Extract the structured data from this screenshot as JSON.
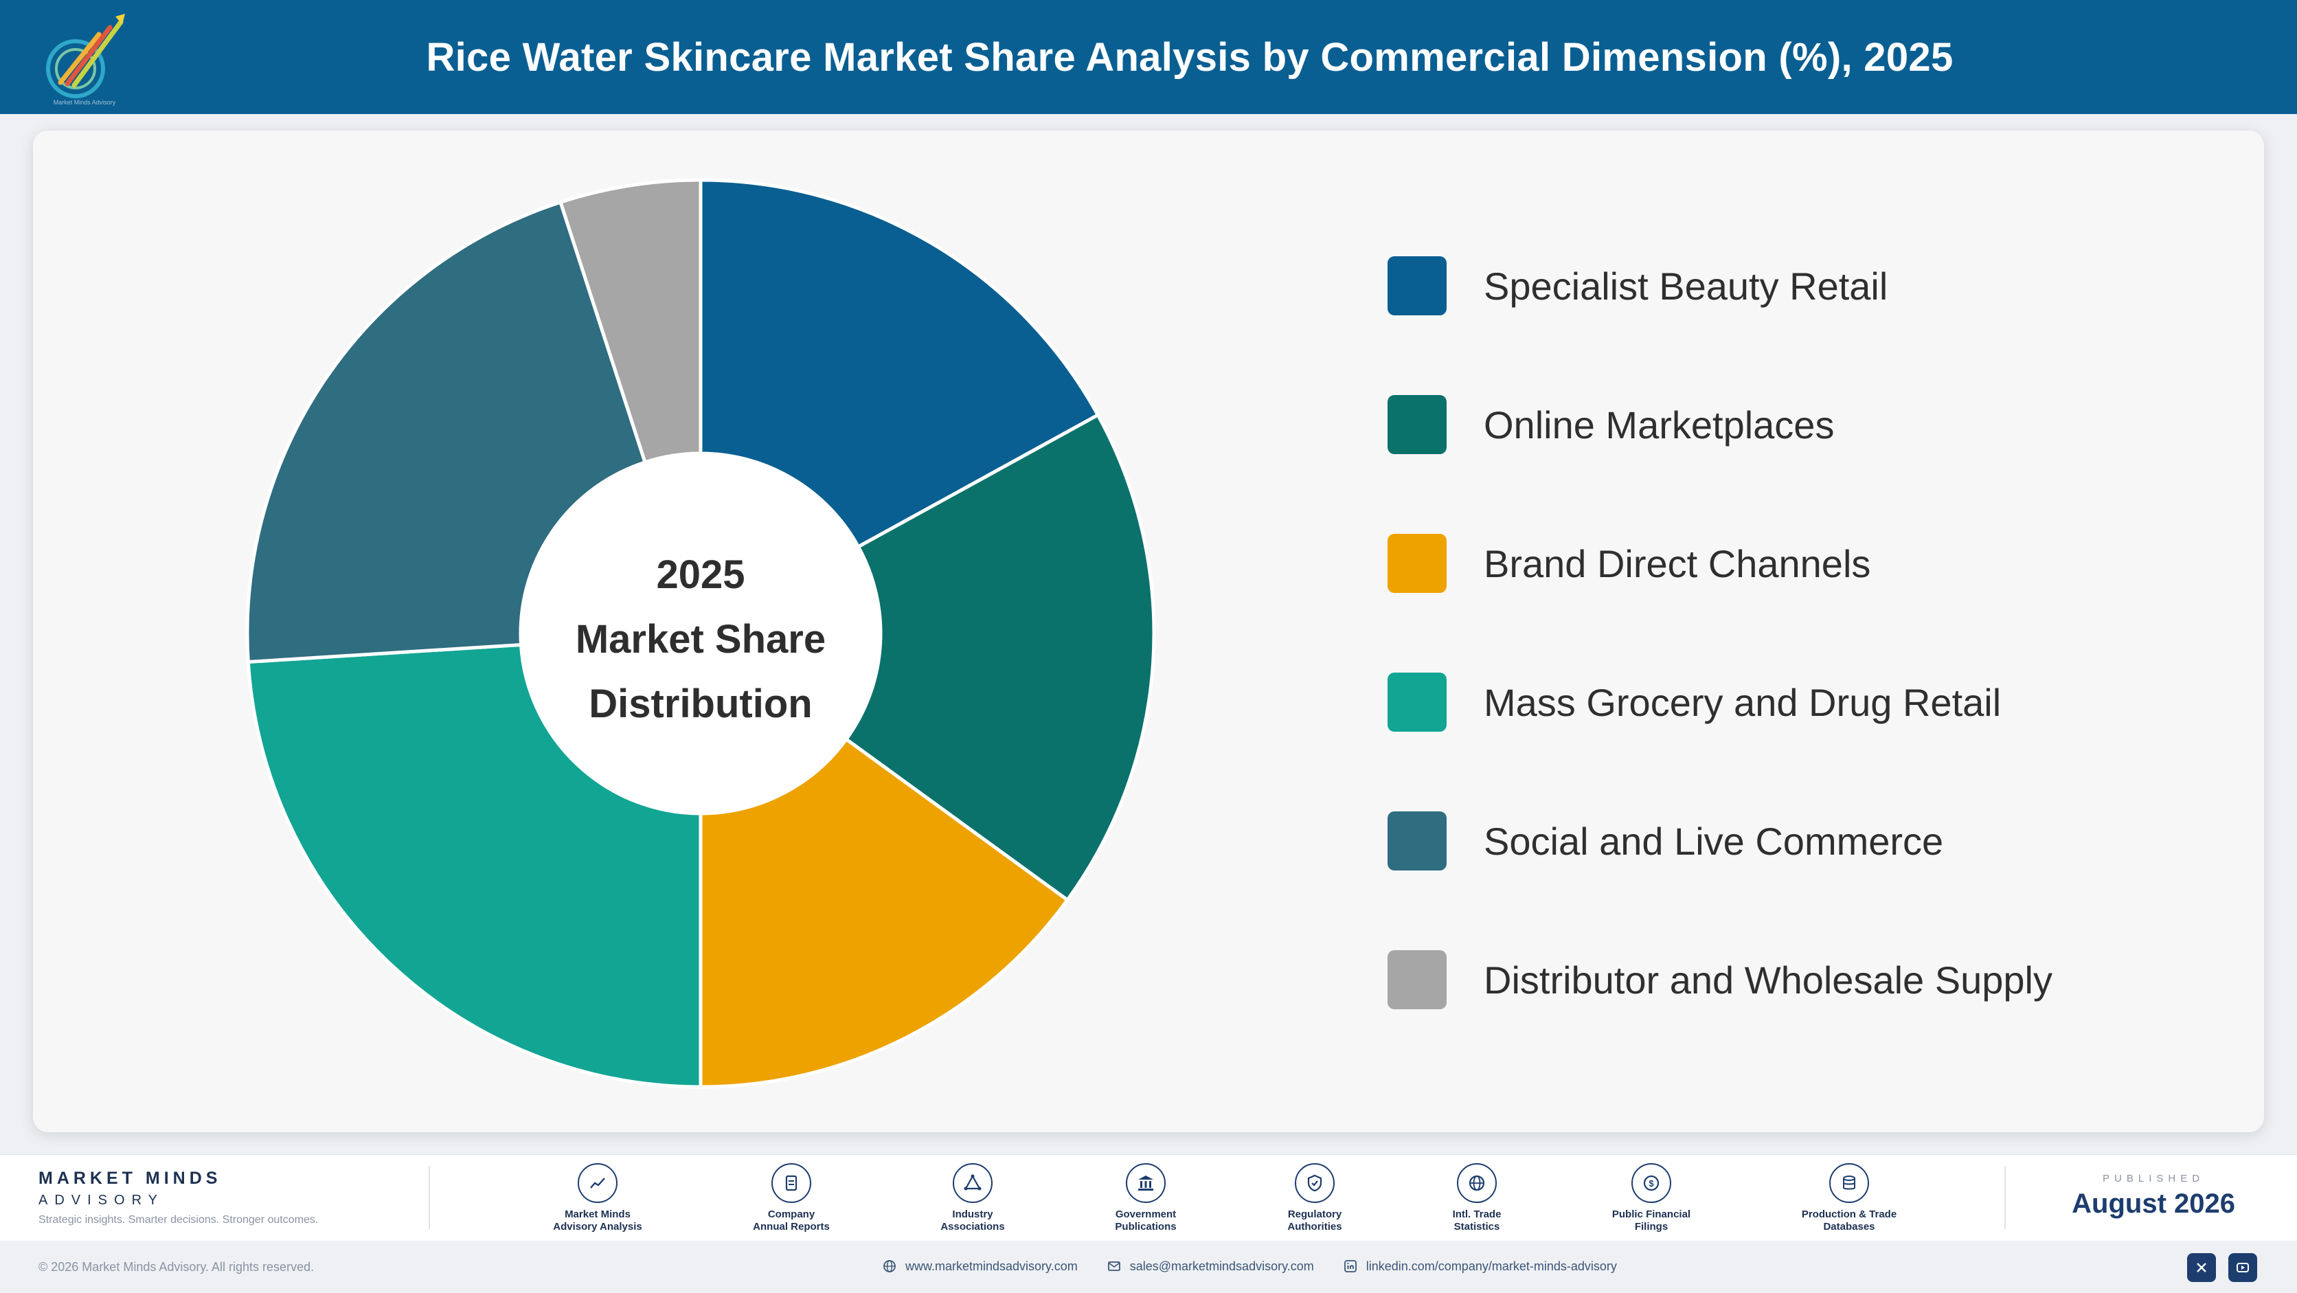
{
  "header": {
    "title": "Rice Water Skincare Market Share Analysis by Commercial Dimension (%), 2025"
  },
  "chart_data": {
    "type": "pie",
    "style": "donut",
    "title": "Rice Water Skincare Market Share Analysis by Commercial Dimension (%), 2025",
    "center_label": [
      "2025",
      "Market Share",
      "Distribution"
    ],
    "legend_position": "right",
    "categories": [
      "Specialist Beauty Retail",
      "Online Marketplaces",
      "Brand Direct Channels",
      "Mass Grocery and Drug Retail",
      "Social and Live Commerce",
      "Distributor and Wholesale Supply"
    ],
    "values": [
      17,
      18,
      15,
      24,
      21,
      5
    ],
    "colors": [
      "#0a5f92",
      "#0b716b",
      "#eea200",
      "#12a594",
      "#2f6d80",
      "#a6a6a6"
    ]
  },
  "footer": {
    "brand_name": "MARKET MINDS",
    "brand_sub": "ADVISORY",
    "tagline": "Strategic insights. Smarter decisions. Stronger outcomes.",
    "sources": [
      {
        "line1": "Market Minds",
        "line2": "Advisory Analysis",
        "icon": "chart-line-icon"
      },
      {
        "line1": "Company",
        "line2": "Annual Reports",
        "icon": "document-icon"
      },
      {
        "line1": "Industry",
        "line2": "Associations",
        "icon": "network-icon"
      },
      {
        "line1": "Government",
        "line2": "Publications",
        "icon": "government-building-icon"
      },
      {
        "line1": "Regulatory",
        "line2": "Authorities",
        "icon": "shield-check-icon"
      },
      {
        "line1": "Intl. Trade",
        "line2": "Statistics",
        "icon": "globe-icon"
      },
      {
        "line1": "Public Financial",
        "line2": "Filings",
        "icon": "dollar-coin-icon"
      },
      {
        "line1": "Production & Trade",
        "line2": "Databases",
        "icon": "database-icon"
      }
    ],
    "published_label": "PUBLISHED",
    "published_date": "August 2026",
    "copyright": "© 2026 Market Minds Advisory. All rights reserved.",
    "website": "www.marketmindsadvisory.com",
    "email": "sales@marketmindsadvisory.com",
    "linkedin": "linkedin.com/company/market-minds-advisory"
  }
}
